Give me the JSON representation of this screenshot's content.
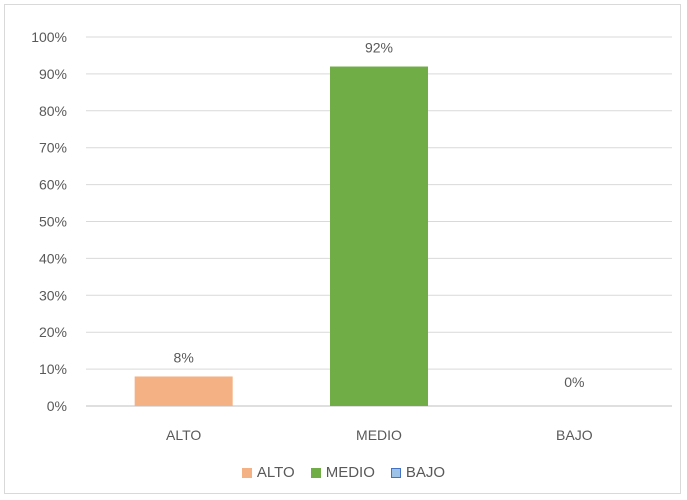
{
  "chart_data": {
    "type": "bar",
    "categories": [
      "ALTO",
      "MEDIO",
      "BAJO"
    ],
    "values": [
      8,
      92,
      0
    ],
    "data_labels": [
      "8%",
      "92%",
      "0%"
    ],
    "colors": [
      "#f4b183",
      "#70ad47",
      "#9dc3e6"
    ],
    "swatch_borders": [
      "#f4b183",
      "#70ad47",
      "#4472c4"
    ],
    "ylim": [
      0,
      100
    ],
    "yticks": [
      0,
      10,
      20,
      30,
      40,
      50,
      60,
      70,
      80,
      90,
      100
    ],
    "ytick_labels": [
      "0%",
      "10%",
      "20%",
      "30%",
      "40%",
      "50%",
      "60%",
      "70%",
      "80%",
      "90%",
      "100%"
    ],
    "title": "",
    "xlabel": "",
    "ylabel": "",
    "grid": true,
    "legend": {
      "position": "bottom",
      "entries": [
        "ALTO",
        "MEDIO",
        "BAJO"
      ]
    }
  }
}
